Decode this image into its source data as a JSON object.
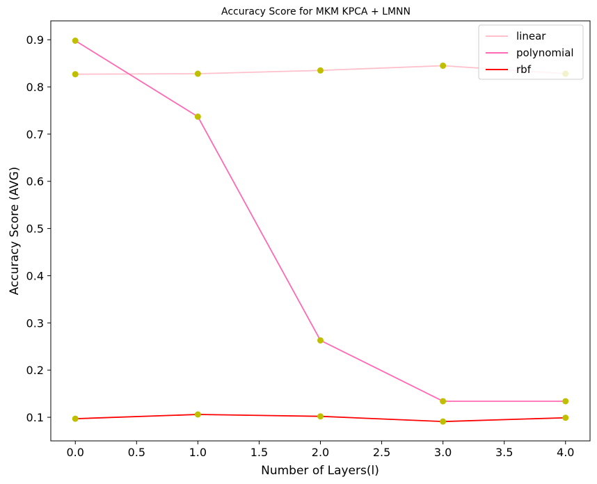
{
  "chart_data": {
    "type": "line",
    "title": "Accuracy Score for MKM KPCA + LMNN",
    "xlabel": "Number of Layers(l)",
    "ylabel": "Accuracy Score (AVG)",
    "x": [
      0,
      1,
      2,
      3,
      4
    ],
    "xlim": [
      -0.2,
      4.2
    ],
    "ylim": [
      0.05,
      0.94
    ],
    "xticks": [
      "0.0",
      "0.5",
      "1.0",
      "1.5",
      "2.0",
      "2.5",
      "3.0",
      "3.5",
      "4.0"
    ],
    "yticks": [
      "0.1",
      "0.2",
      "0.3",
      "0.4",
      "0.5",
      "0.6",
      "0.7",
      "0.8",
      "0.9"
    ],
    "grid": false,
    "legend_position": "top-right",
    "marker_color": "#bfbf00",
    "series": [
      {
        "name": "linear",
        "color": "#ffc0cb",
        "values": [
          0.827,
          0.828,
          0.835,
          0.845,
          0.828
        ]
      },
      {
        "name": "polynomial",
        "color": "#ff69b4",
        "values": [
          0.898,
          0.737,
          0.263,
          0.134,
          0.134
        ]
      },
      {
        "name": "rbf",
        "color": "#ff0000",
        "values": [
          0.097,
          0.106,
          0.102,
          0.091,
          0.099
        ]
      }
    ]
  }
}
